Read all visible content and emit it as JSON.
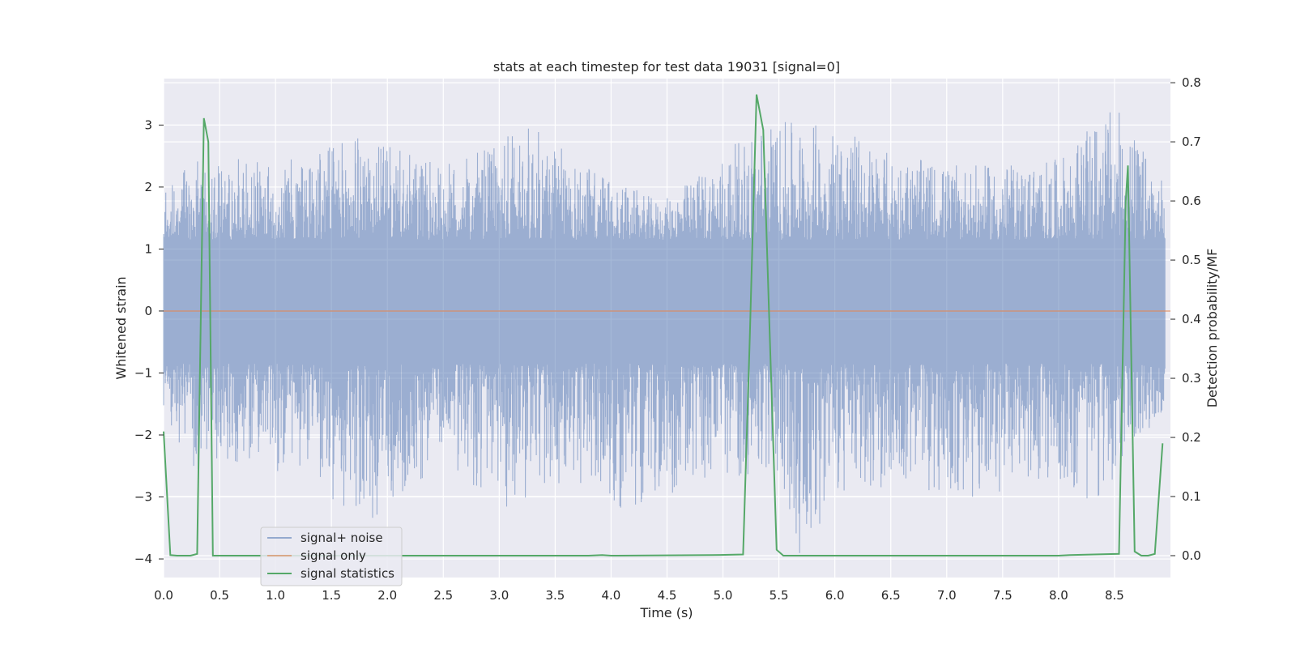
{
  "chart_data": {
    "type": "line",
    "title": "stats at each timestep for test data 19031 [signal=0]",
    "xlabel": "Time (s)",
    "ylabel": "Whitened strain",
    "y2label": "Detection probability/MF",
    "xlim": [
      0.0,
      9.0
    ],
    "ylim": [
      -4.3,
      3.75
    ],
    "y2lim": [
      -0.037,
      0.807
    ],
    "x_ticks": [
      0.0,
      0.5,
      1.0,
      1.5,
      2.0,
      2.5,
      3.0,
      3.5,
      4.0,
      4.5,
      5.0,
      5.5,
      6.0,
      6.5,
      7.0,
      7.5,
      8.0,
      8.5
    ],
    "x_tick_labels": [
      "0.0",
      "0.5",
      "1.0",
      "1.5",
      "2.0",
      "2.5",
      "3.0",
      "3.5",
      "4.0",
      "4.5",
      "5.0",
      "5.5",
      "6.0",
      "6.5",
      "7.0",
      "7.5",
      "8.0",
      "8.5"
    ],
    "y_ticks": [
      -4,
      -3,
      -2,
      -1,
      0,
      1,
      2,
      3
    ],
    "y_tick_labels": [
      "−4",
      "−3",
      "−2",
      "−1",
      "0",
      "1",
      "2",
      "3"
    ],
    "y2_ticks": [
      0.0,
      0.1,
      0.2,
      0.3,
      0.4,
      0.5,
      0.6,
      0.7,
      0.8
    ],
    "y2_tick_labels": [
      "0.0",
      "0.1",
      "0.2",
      "0.3",
      "0.4",
      "0.5",
      "0.6",
      "0.7",
      "0.8"
    ],
    "grid": true,
    "legend_position": "lower-left",
    "series": [
      {
        "name": "signal+ noise",
        "axis": "left",
        "color": "#4c72b0",
        "alpha": 0.5,
        "kind": "noise",
        "envelope_upper": [
          [
            0.0,
            2.1
          ],
          [
            0.4,
            2.6
          ],
          [
            1.0,
            2.4
          ],
          [
            1.7,
            2.9
          ],
          [
            2.5,
            2.4
          ],
          [
            2.95,
            2.7
          ],
          [
            3.2,
            3.15
          ],
          [
            3.7,
            2.5
          ],
          [
            4.45,
            1.8
          ],
          [
            5.0,
            2.6
          ],
          [
            5.35,
            3.1
          ],
          [
            6.0,
            3.1
          ],
          [
            6.5,
            2.6
          ],
          [
            7.0,
            2.4
          ],
          [
            7.5,
            2.4
          ],
          [
            8.0,
            2.5
          ],
          [
            8.5,
            3.4
          ],
          [
            8.95,
            2.1
          ]
        ],
        "envelope_lower": [
          [
            0.0,
            -1.6
          ],
          [
            0.25,
            -2.7
          ],
          [
            0.5,
            -2.4
          ],
          [
            1.3,
            -2.7
          ],
          [
            1.8,
            -3.5
          ],
          [
            2.5,
            -2.4
          ],
          [
            3.0,
            -3.2
          ],
          [
            3.8,
            -2.8
          ],
          [
            4.1,
            -3.2
          ],
          [
            4.9,
            -2.75
          ],
          [
            5.5,
            -2.6
          ],
          [
            5.65,
            -4.0
          ],
          [
            6.0,
            -3.1
          ],
          [
            6.5,
            -2.8
          ],
          [
            7.2,
            -3.1
          ],
          [
            8.0,
            -2.7
          ],
          [
            8.3,
            -3.2
          ],
          [
            8.95,
            -1.6
          ]
        ]
      },
      {
        "name": "signal only",
        "axis": "left",
        "color": "#dd8452",
        "x": [
          0.0,
          9.0
        ],
        "y": [
          0.0,
          0.0
        ]
      },
      {
        "name": "signal statistics",
        "axis": "right",
        "color": "#55a868",
        "x": [
          0.0,
          0.06,
          0.12,
          0.24,
          0.3,
          0.36,
          0.4,
          0.44,
          0.5,
          1.0,
          2.0,
          3.0,
          3.8,
          3.92,
          4.0,
          4.9,
          5.18,
          5.24,
          5.3,
          5.36,
          5.42,
          5.48,
          5.54,
          5.6,
          6.0,
          7.0,
          8.0,
          8.1,
          8.54,
          8.6,
          8.62,
          8.68,
          8.74,
          8.8,
          8.86,
          8.93
        ],
        "y": [
          0.21,
          0.001,
          0.0,
          0.0,
          0.003,
          0.74,
          0.7,
          0.0,
          0.0,
          0.0,
          0.0,
          0.0,
          0.0,
          0.001,
          0.0,
          0.001,
          0.002,
          0.37,
          0.78,
          0.72,
          0.36,
          0.01,
          0.0,
          0.0,
          0.0,
          0.0,
          0.0,
          0.001,
          0.003,
          0.6,
          0.66,
          0.007,
          0.0,
          0.0,
          0.003,
          0.19
        ]
      }
    ]
  }
}
